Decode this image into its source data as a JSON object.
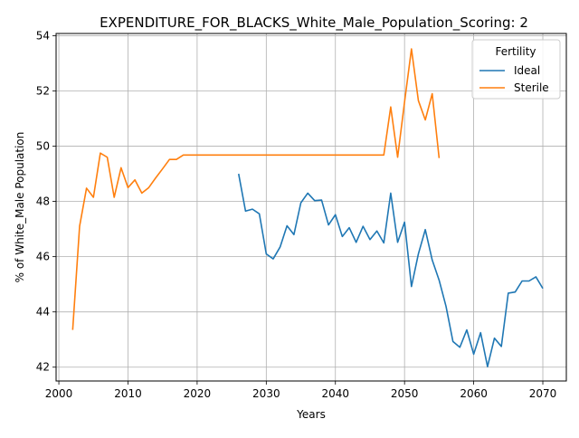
{
  "chart_data": {
    "type": "line",
    "title": "EXPENDITURE_FOR_BLACKS_White_Male_Population_Scoring: 2",
    "xlabel": "Years",
    "ylabel": "% of White_Male Population",
    "xlim": [
      1999.6,
      2073.4
    ],
    "ylim": [
      41.5,
      54.08
    ],
    "xticks": [
      2000,
      2010,
      2020,
      2030,
      2040,
      2050,
      2060,
      2070
    ],
    "yticks": [
      42,
      44,
      46,
      48,
      50,
      52,
      54
    ],
    "grid": true,
    "legend": {
      "title": "Fertility",
      "placement": "top-right"
    },
    "series": [
      {
        "name": "Ideal",
        "color": "#1f77b4",
        "x": [
          2026,
          2027,
          2028,
          2029,
          2030,
          2031,
          2032,
          2033,
          2034,
          2035,
          2036,
          2037,
          2038,
          2039,
          2040,
          2041,
          2042,
          2043,
          2044,
          2045,
          2046,
          2047,
          2048,
          2049,
          2050,
          2051,
          2052,
          2053,
          2054,
          2055,
          2056,
          2057,
          2058,
          2059,
          2060,
          2061,
          2062,
          2063,
          2064,
          2065,
          2066,
          2067,
          2068,
          2069,
          2070
        ],
        "values": [
          49.0,
          47.65,
          47.72,
          47.55,
          46.1,
          45.92,
          46.35,
          47.12,
          46.8,
          47.95,
          48.3,
          48.03,
          48.05,
          47.15,
          47.52,
          46.73,
          47.05,
          46.52,
          47.1,
          46.62,
          46.93,
          46.5,
          48.3,
          46.52,
          47.25,
          44.92,
          46.1,
          46.98,
          45.88,
          45.15,
          44.2,
          42.93,
          42.72,
          43.35,
          42.47,
          43.25,
          42.02,
          43.05,
          42.75,
          44.68,
          44.72,
          45.12,
          45.12,
          45.27,
          44.85
        ]
      },
      {
        "name": "Sterile",
        "color": "#ff7f0e",
        "x": [
          2002,
          2003,
          2004,
          2005,
          2006,
          2007,
          2008,
          2009,
          2010,
          2011,
          2012,
          2013,
          2014,
          2015,
          2016,
          2017,
          2018,
          2019,
          2020,
          2021,
          2022,
          2023,
          2024,
          2025,
          2026,
          2027,
          2028,
          2029,
          2030,
          2031,
          2032,
          2033,
          2034,
          2035,
          2036,
          2037,
          2038,
          2039,
          2040,
          2041,
          2042,
          2043,
          2044,
          2045,
          2046,
          2047,
          2048,
          2049,
          2050,
          2051,
          2052,
          2053,
          2054,
          2055
        ],
        "values": [
          43.35,
          47.1,
          48.48,
          48.15,
          49.75,
          49.6,
          48.15,
          49.22,
          48.5,
          48.78,
          48.3,
          48.5,
          48.85,
          49.18,
          49.52,
          49.52,
          49.68,
          49.68,
          49.68,
          49.68,
          49.68,
          49.68,
          49.68,
          49.68,
          49.68,
          49.68,
          49.68,
          49.68,
          49.68,
          49.68,
          49.68,
          49.68,
          49.68,
          49.68,
          49.68,
          49.68,
          49.68,
          49.68,
          49.68,
          49.68,
          49.68,
          49.68,
          49.68,
          49.68,
          49.68,
          49.68,
          51.42,
          49.6,
          51.6,
          53.52,
          51.65,
          50.95,
          51.9,
          49.57
        ]
      }
    ]
  }
}
